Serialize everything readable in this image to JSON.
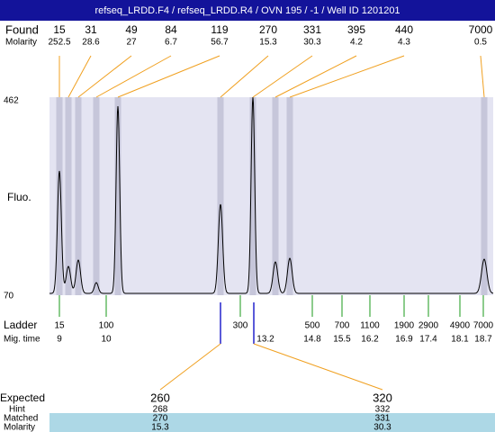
{
  "header": {
    "title": "refseq_LRDD.F4 / refseq_LRDD.R4 / OVN 195 / -1 / Well ID 1201201"
  },
  "found": {
    "label": "Found",
    "molarity_label": "Molarity",
    "sizes": [
      15,
      31,
      49,
      84,
      119,
      270,
      331,
      395,
      440,
      7000
    ],
    "molarity": [
      252.5,
      28.6,
      27,
      6.7,
      56.7,
      15.3,
      30.3,
      4.2,
      4.3,
      0.5
    ]
  },
  "axis": {
    "label": "Fluo.",
    "max": 462,
    "min": 70
  },
  "ladder": {
    "label": "Ladder",
    "mig_label": "Mig. time",
    "sizes": [
      15,
      100,
      300,
      500,
      700,
      1100,
      1900,
      2900,
      4900,
      7000
    ],
    "mig_times": [
      9,
      10,
      13.2,
      14.8,
      15.5,
      16.2,
      16.9,
      17.4,
      18.1,
      18.7
    ]
  },
  "expected": {
    "label": "Expected",
    "hint_label": "Hint",
    "matched_label": "Matched",
    "molarity_label": "Molarity",
    "values": [
      260,
      320
    ],
    "hint": [
      268,
      332
    ],
    "matched": [
      270,
      331
    ],
    "molarity": [
      15.3,
      30.3
    ]
  }
}
